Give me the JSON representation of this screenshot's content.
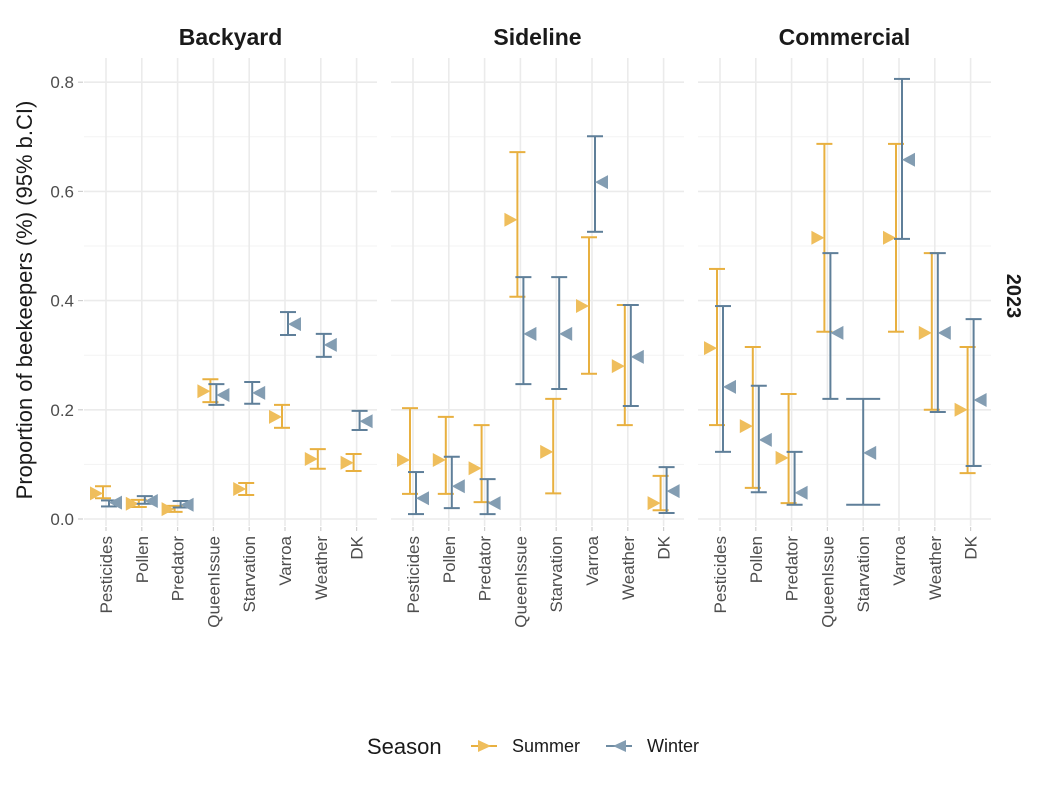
{
  "chart_data": {
    "type": "scatter",
    "subtype": "point-errorbar-facets",
    "ylabel": "Proportion of beekeepers (%) (95% b.CI)",
    "xlabel": "",
    "ylim": [
      0,
      0.84
    ],
    "yticks": [
      "0.0",
      "0.2",
      "0.4",
      "0.6",
      "0.8"
    ],
    "ytick_values": [
      0,
      0.2,
      0.4,
      0.6,
      0.8
    ],
    "grid": true,
    "row_strip": "2023",
    "categories": [
      "Pesticides",
      "Pollen",
      "Predator",
      "QueenIssue",
      "Starvation",
      "Varroa",
      "Weather",
      "DK"
    ],
    "legend": {
      "title": "Season",
      "position": "bottom",
      "entries": [
        {
          "name": "Summer",
          "color": "#E8B040",
          "marker": "right-triangle"
        },
        {
          "name": "Winter",
          "color": "#6F8CA3",
          "marker": "left-triangle"
        }
      ]
    },
    "panels": [
      {
        "title": "Backyard",
        "series": [
          {
            "name": "Summer",
            "values": [
              0.047,
              0.028,
              0.018,
              0.234,
              0.055,
              0.187,
              0.11,
              0.103
            ],
            "lower": [
              0.038,
              0.022,
              0.013,
              0.214,
              0.044,
              0.167,
              0.092,
              0.088
            ],
            "upper": [
              0.06,
              0.035,
              0.024,
              0.256,
              0.066,
              0.209,
              0.128,
              0.119
            ]
          },
          {
            "name": "Winter",
            "values": [
              0.03,
              0.033,
              0.026,
              0.227,
              0.231,
              0.357,
              0.319,
              0.179
            ],
            "lower": [
              0.023,
              0.028,
              0.021,
              0.209,
              0.211,
              0.337,
              0.297,
              0.163
            ],
            "upper": [
              0.034,
              0.042,
              0.033,
              0.247,
              0.251,
              0.379,
              0.339,
              0.198
            ]
          }
        ]
      },
      {
        "title": "Sideline",
        "series": [
          {
            "name": "Summer",
            "values": [
              0.108,
              0.108,
              0.093,
              0.548,
              0.123,
              0.39,
              0.28,
              0.029
            ],
            "lower": [
              0.046,
              0.046,
              0.031,
              0.407,
              0.047,
              0.266,
              0.172,
              0.016
            ],
            "upper": [
              0.203,
              0.187,
              0.172,
              0.672,
              0.22,
              0.516,
              0.392,
              0.079
            ]
          },
          {
            "name": "Winter",
            "values": [
              0.038,
              0.06,
              0.029,
              0.339,
              0.339,
              0.617,
              0.297,
              0.051
            ],
            "lower": [
              0.009,
              0.02,
              0.009,
              0.247,
              0.238,
              0.526,
              0.207,
              0.011
            ],
            "upper": [
              0.086,
              0.114,
              0.073,
              0.443,
              0.443,
              0.701,
              0.392,
              0.095
            ]
          }
        ]
      },
      {
        "title": "Commercial",
        "series": [
          {
            "name": "Summer",
            "values": [
              0.313,
              0.17,
              0.112,
              0.515,
              null,
              0.515,
              0.341,
              0.2
            ],
            "lower": [
              0.172,
              0.057,
              0.029,
              0.343,
              null,
              0.343,
              0.2,
              0.084
            ],
            "upper": [
              0.458,
              0.315,
              0.229,
              0.687,
              null,
              0.687,
              0.487,
              0.315
            ]
          },
          {
            "name": "Winter",
            "values": [
              0.242,
              0.145,
              0.048,
              0.341,
              0.121,
              0.658,
              0.341,
              0.218
            ],
            "lower": [
              0.123,
              0.049,
              0.026,
              0.22,
              0.026,
              0.513,
              0.196,
              0.097
            ],
            "upper": [
              0.39,
              0.244,
              0.123,
              0.487,
              0.22,
              0.806,
              0.487,
              0.366
            ]
          }
        ]
      }
    ]
  },
  "colors": {
    "summer_bar": "#E8B040",
    "summer_point": "#EFBE5C",
    "winter_bar": "#5F7F99",
    "winter_point": "#839DB2",
    "grid": "#EBEBEB"
  }
}
